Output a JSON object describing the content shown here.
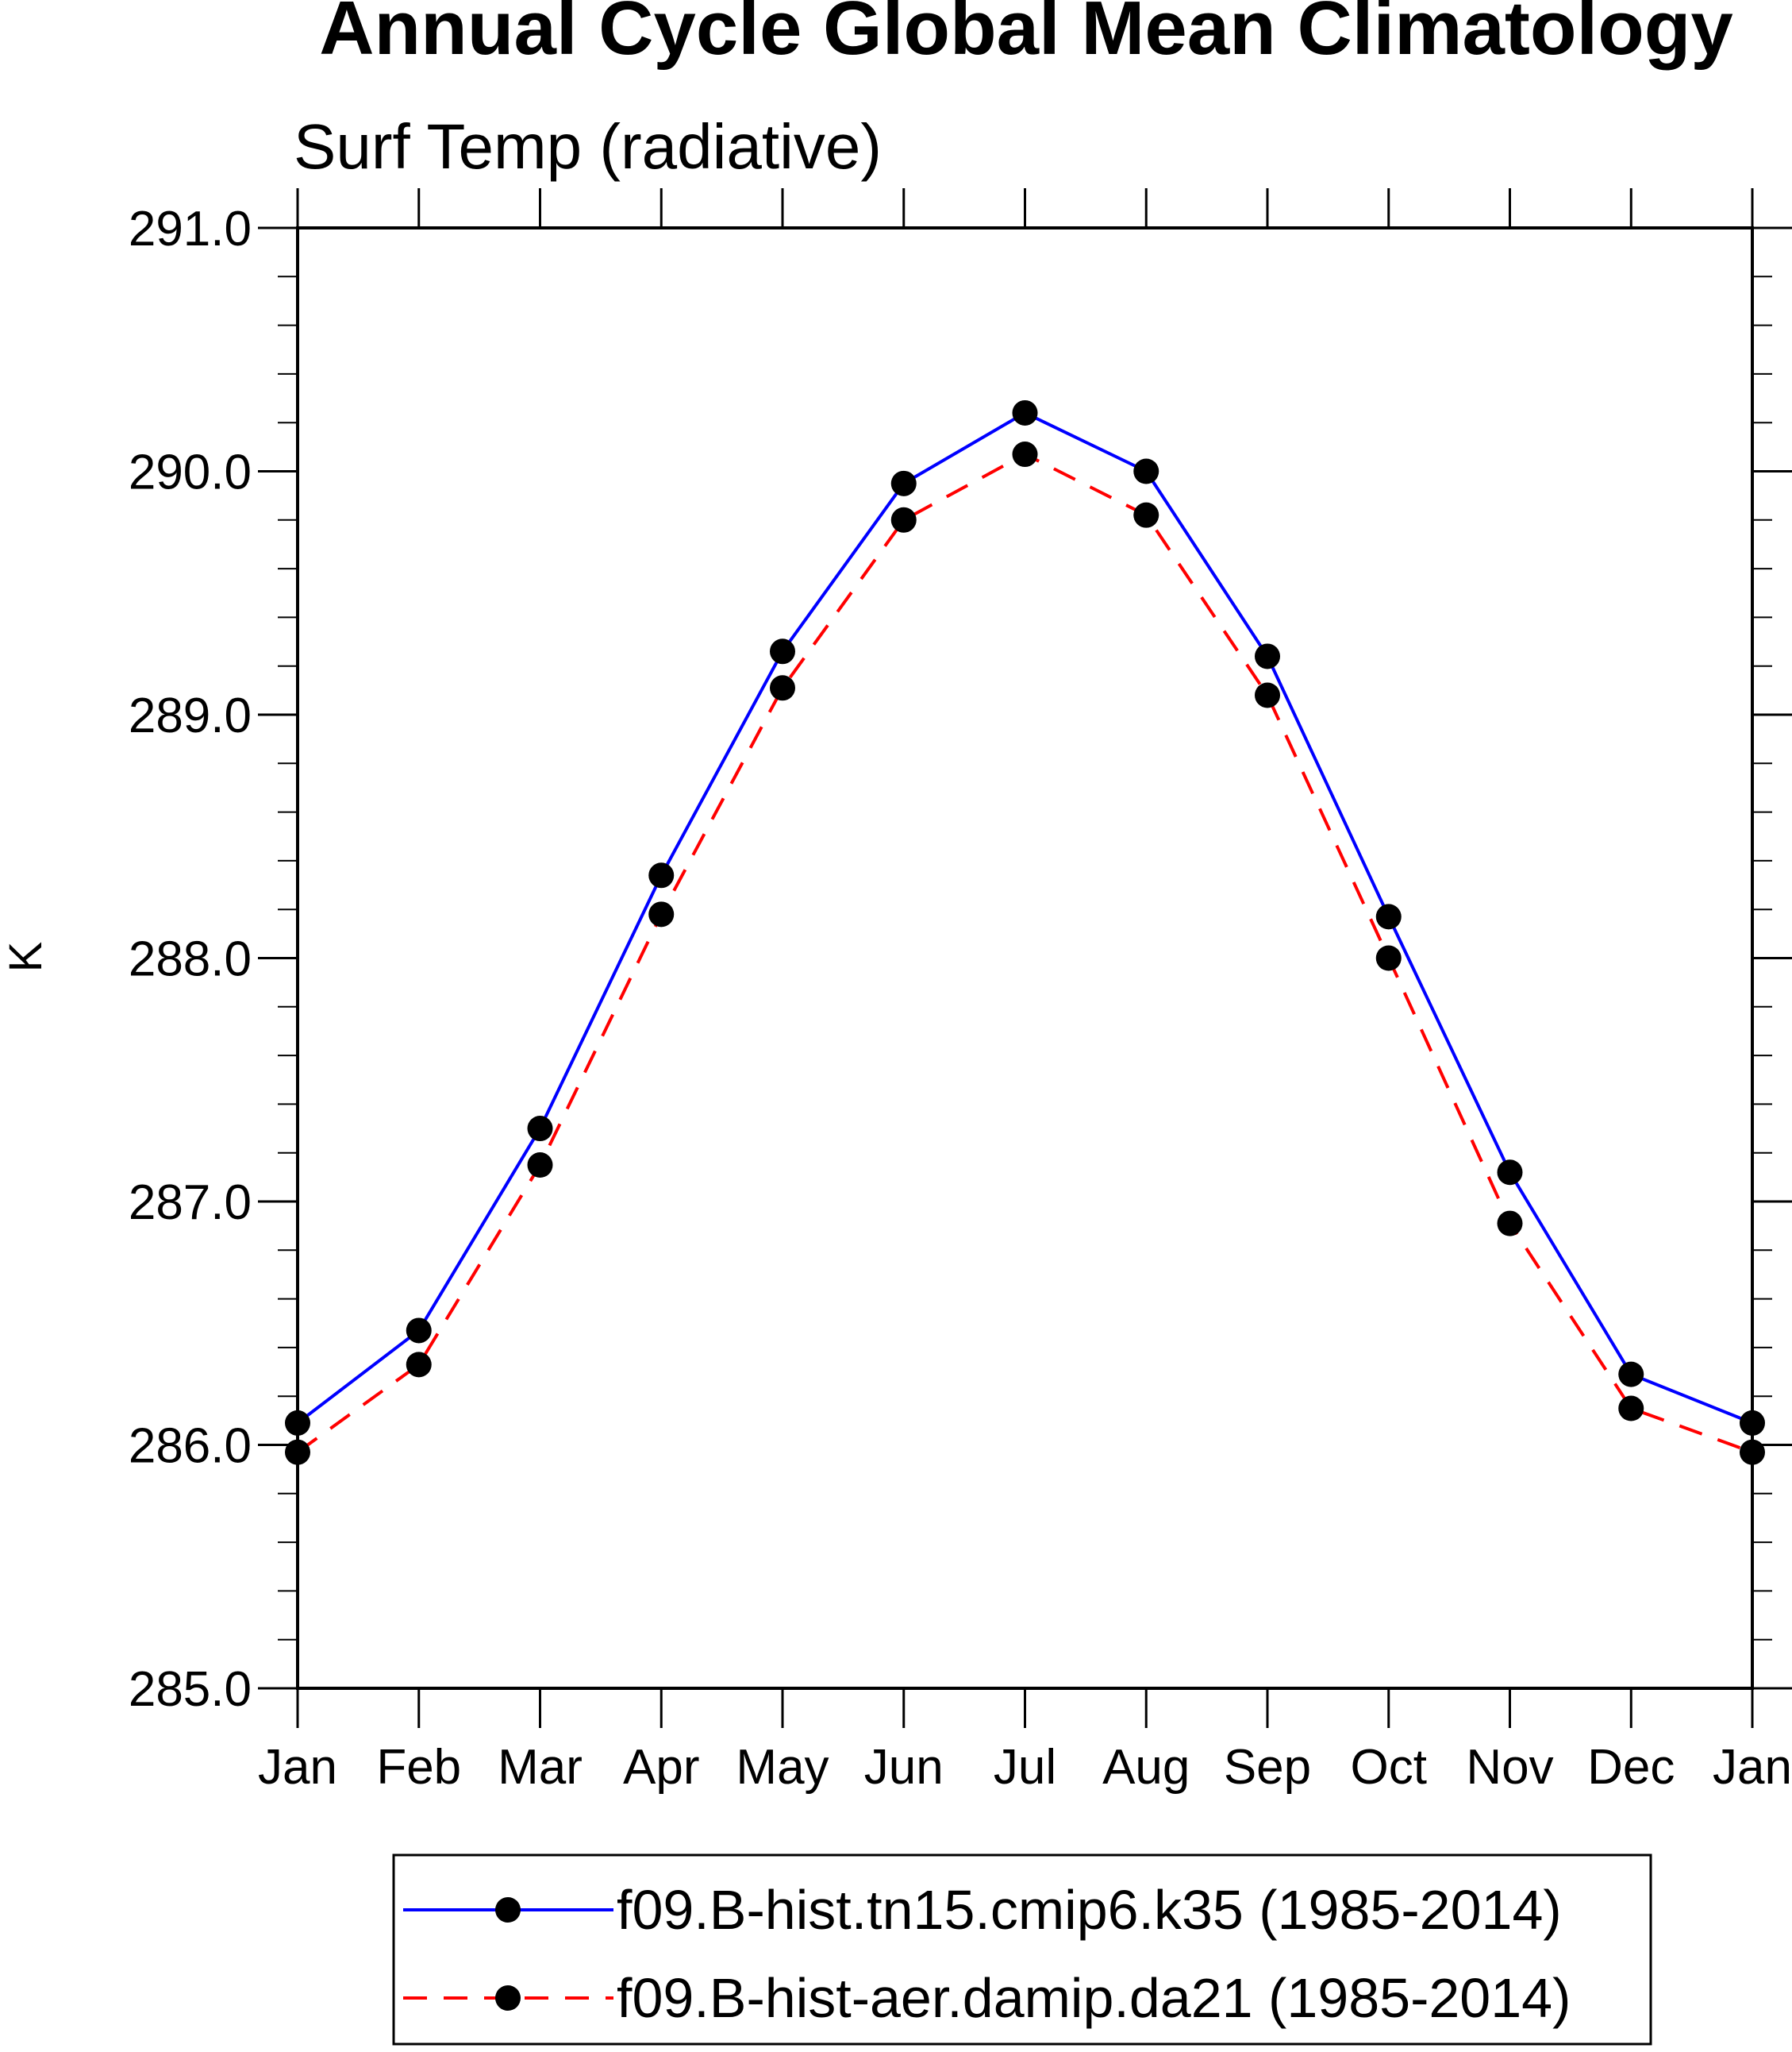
{
  "chart_data": {
    "type": "line",
    "title": "Annual Cycle Global Mean Climatology",
    "subtitle": "Surf Temp (radiative)",
    "xlabel": "",
    "ylabel": "K",
    "categories": [
      "Jan",
      "Feb",
      "Mar",
      "Apr",
      "May",
      "Jun",
      "Jul",
      "Aug",
      "Sep",
      "Oct",
      "Nov",
      "Dec",
      "Jan"
    ],
    "ylim": [
      285.0,
      291.0
    ],
    "yticks": [
      "285.0",
      "286.0",
      "287.0",
      "288.0",
      "289.0",
      "290.0",
      "291.0"
    ],
    "ytick_values": [
      285.0,
      286.0,
      287.0,
      288.0,
      289.0,
      290.0,
      291.0
    ],
    "yminor_step": 0.2,
    "grid": false,
    "legend_position": "bottom",
    "series": [
      {
        "name": "f09.B-hist.tn15.cmip6.k35 (1985-2014)",
        "color": "#0000ff",
        "line_style": "solid",
        "marker": "circle",
        "values": [
          286.09,
          286.47,
          287.3,
          288.34,
          289.26,
          289.95,
          290.24,
          290.0,
          289.24,
          288.17,
          287.12,
          286.29,
          286.09
        ]
      },
      {
        "name": "f09.B-hist-aer.damip.da21 (1985-2014)",
        "color": "#ff0000",
        "line_style": "dashed",
        "marker": "circle",
        "values": [
          285.97,
          286.33,
          287.15,
          288.18,
          289.11,
          289.8,
          290.07,
          289.82,
          289.08,
          288.0,
          286.91,
          286.15,
          285.97
        ]
      }
    ]
  }
}
